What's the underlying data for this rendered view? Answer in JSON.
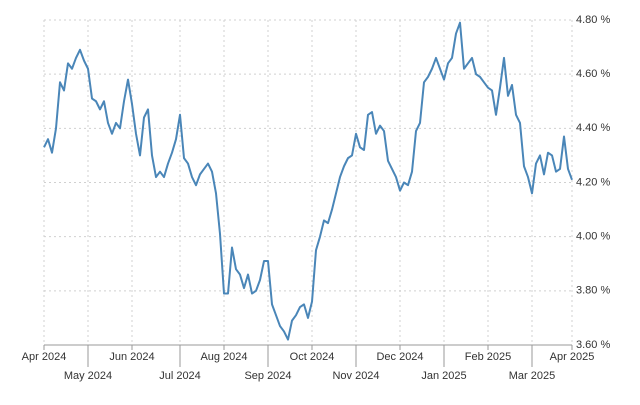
{
  "chart_data": {
    "type": "line",
    "xlim": [
      0,
      132
    ],
    "xticks": [
      {
        "value": 0,
        "label": "Apr 2024"
      },
      {
        "value": 11,
        "label": "May 2024"
      },
      {
        "value": 22,
        "label": "Jun 2024"
      },
      {
        "value": 34,
        "label": "Jul 2024"
      },
      {
        "value": 45,
        "label": "Aug 2024"
      },
      {
        "value": 56,
        "label": "Sep 2024"
      },
      {
        "value": 67,
        "label": "Oct 2024"
      },
      {
        "value": 78,
        "label": "Nov 2024"
      },
      {
        "value": 89,
        "label": "Dec 2024"
      },
      {
        "value": 100,
        "label": "Jan 2025"
      },
      {
        "value": 111,
        "label": "Feb 2025"
      },
      {
        "value": 122,
        "label": "Mar 2025"
      },
      {
        "value": 132,
        "label": "Apr 2025"
      }
    ],
    "ylim": [
      3.6,
      4.8
    ],
    "yticks": [
      {
        "value": 3.6,
        "label": "3.60 %"
      },
      {
        "value": 3.8,
        "label": "3.80 %"
      },
      {
        "value": 4.0,
        "label": "4.00 %"
      },
      {
        "value": 4.2,
        "label": "4.20 %"
      },
      {
        "value": 4.4,
        "label": "4.40 %"
      },
      {
        "value": 4.6,
        "label": "4.60 %"
      },
      {
        "value": 4.8,
        "label": "4.80 %"
      }
    ],
    "grid": true,
    "color": "#4a86b8",
    "values": [
      4.33,
      4.36,
      4.31,
      4.4,
      4.57,
      4.54,
      4.64,
      4.62,
      4.66,
      4.69,
      4.65,
      4.62,
      4.51,
      4.5,
      4.47,
      4.5,
      4.42,
      4.38,
      4.42,
      4.4,
      4.5,
      4.58,
      4.49,
      4.38,
      4.3,
      4.44,
      4.47,
      4.3,
      4.22,
      4.24,
      4.22,
      4.27,
      4.31,
      4.36,
      4.45,
      4.29,
      4.27,
      4.22,
      4.19,
      4.23,
      4.25,
      4.27,
      4.24,
      4.16,
      4.01,
      3.79,
      3.79,
      3.96,
      3.88,
      3.86,
      3.81,
      3.86,
      3.79,
      3.8,
      3.84,
      3.91,
      3.91,
      3.75,
      3.71,
      3.67,
      3.65,
      3.62,
      3.69,
      3.71,
      3.74,
      3.75,
      3.7,
      3.76,
      3.95,
      4.0,
      4.06,
      4.05,
      4.1,
      4.16,
      4.22,
      4.26,
      4.29,
      4.3,
      4.38,
      4.33,
      4.32,
      4.45,
      4.46,
      4.38,
      4.41,
      4.39,
      4.28,
      4.25,
      4.22,
      4.17,
      4.2,
      4.19,
      4.24,
      4.39,
      4.42,
      4.57,
      4.59,
      4.62,
      4.66,
      4.62,
      4.58,
      4.64,
      4.66,
      4.75,
      4.79,
      4.62,
      4.64,
      4.66,
      4.6,
      4.59,
      4.57,
      4.55,
      4.54,
      4.45,
      4.55,
      4.66,
      4.52,
      4.56,
      4.45,
      4.42,
      4.26,
      4.22,
      4.16,
      4.27,
      4.3,
      4.23,
      4.31,
      4.3,
      4.24,
      4.25,
      4.37,
      4.25,
      4.21
    ]
  }
}
